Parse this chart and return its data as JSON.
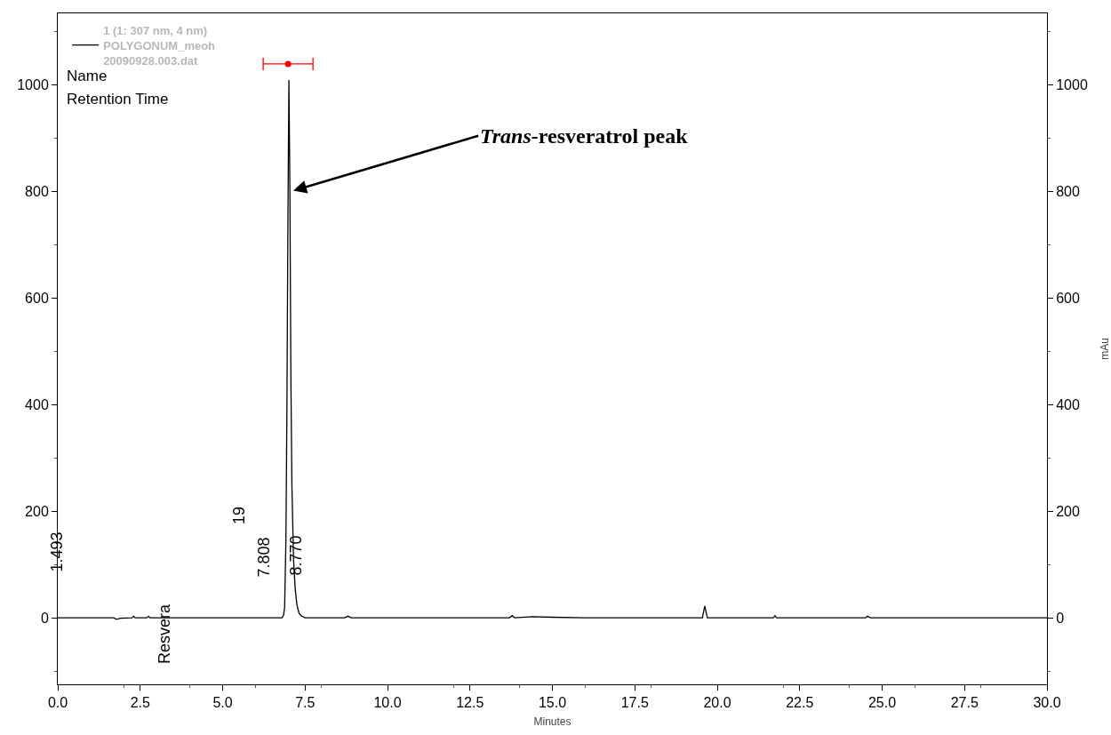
{
  "chart_data": {
    "type": "line",
    "xlabel": "Minutes",
    "y2label": "mAu",
    "x": [
      0,
      1.7,
      1.78,
      1.9,
      2.25,
      2.3,
      2.35,
      2.7,
      2.75,
      2.8,
      6.8,
      6.85,
      6.88,
      6.92,
      6.95,
      6.98,
      7.01,
      7.04,
      7.07,
      7.1,
      7.15,
      7.2,
      7.25,
      7.32,
      7.4,
      7.5,
      8.7,
      8.8,
      8.9,
      13.7,
      13.78,
      13.85,
      14.4,
      15,
      16,
      19.55,
      19.62,
      19.7,
      21.7,
      21.75,
      21.8,
      24.5,
      24.55,
      24.65,
      30
    ],
    "series": [
      {
        "name": "1 (1: 307 nm, 4 nm)\nPOLYGONUM_meoh\n20090928.003.dat",
        "color": "#000000",
        "values": [
          0,
          0,
          -3,
          -1,
          0,
          3,
          0,
          0,
          3,
          0,
          0,
          5,
          20,
          150,
          400,
          750,
          1010,
          800,
          450,
          250,
          110,
          55,
          25,
          8,
          3,
          0,
          0,
          3,
          0,
          0,
          4,
          0,
          2,
          1,
          0,
          0,
          22,
          0,
          0,
          4,
          0,
          0,
          3,
          0,
          0
        ]
      },
      {
        "type": "scatter",
        "color": "#ff0000",
        "x": [
          6.985
        ],
        "values": [
          1040
        ],
        "xerrors": [
          [
            6.23,
            7.74
          ]
        ]
      }
    ],
    "xlim": [
      0,
      30
    ],
    "xticks": [
      {
        "value": 0,
        "label": "0.0"
      },
      2.5,
      {
        "value": 5,
        "label": "5.0"
      },
      7.5,
      {
        "value": 10,
        "label": "10.0"
      },
      12.5,
      {
        "value": 15,
        "label": "15.0"
      },
      17.5,
      {
        "value": 20,
        "label": "20.0"
      },
      22.5,
      {
        "value": 25,
        "label": "25.0"
      },
      27.5,
      {
        "value": 30,
        "label": "30.0"
      }
    ],
    "ylim": [
      -125,
      1135
    ],
    "yticks": [
      0,
      200,
      400,
      600,
      800,
      1000
    ],
    "y2lim": [
      -125,
      1135
    ],
    "y2ticks": [
      0,
      200,
      400,
      600,
      800,
      1000
    ],
    "annotations": [
      {
        "text": "Trans-resveratrol peak",
        "x": 7.04,
        "y": 800
      },
      "Name",
      "Retention Time",
      "1.493",
      "Resvera",
      "19",
      "7.808",
      "8.770"
    ],
    "grid": false,
    "legend": "top left",
    "marker": "none",
    "line_style": "solid"
  }
}
